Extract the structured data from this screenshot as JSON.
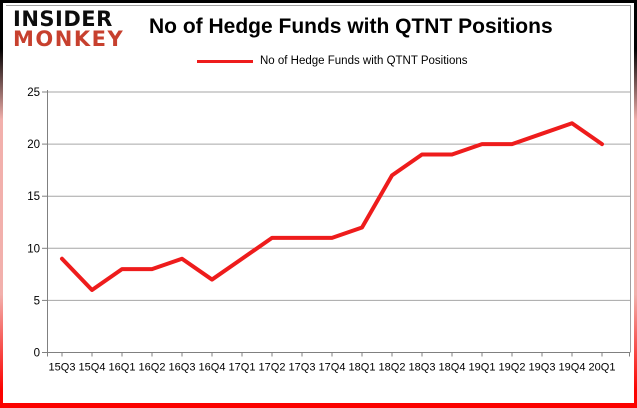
{
  "logo": {
    "line1": "INSIDER",
    "line2": "MONKEY"
  },
  "header": {
    "title": "No of Hedge Funds with QTNT Positions"
  },
  "legend": {
    "label": "No of Hedge Funds with QTNT Positions"
  },
  "colors": {
    "line": "#ee1c1c",
    "logo_red": "#c7402e",
    "grid": "#a6a6a6",
    "axis": "#808080",
    "chart_border": "#a0a0a0",
    "text": "#000000",
    "frame_top": "#000000",
    "frame_side": "#f2b0ac",
    "frame_bottom": "#fb0200"
  },
  "chart_data": {
    "type": "line",
    "title": "No of Hedge Funds with QTNT Positions",
    "xlabel": "",
    "ylabel": "",
    "categories": [
      "15Q3",
      "15Q4",
      "16Q1",
      "16Q2",
      "16Q3",
      "16Q4",
      "17Q1",
      "17Q2",
      "17Q3",
      "17Q4",
      "18Q1",
      "18Q2",
      "18Q3",
      "18Q4",
      "19Q1",
      "19Q2",
      "19Q3",
      "19Q4",
      "20Q1"
    ],
    "series": [
      {
        "name": "No of Hedge Funds with QTNT Positions",
        "values": [
          9,
          6,
          8,
          8,
          9,
          7,
          9,
          11,
          11,
          11,
          12,
          17,
          19,
          19,
          20,
          20,
          21,
          22,
          20
        ]
      }
    ],
    "ylim": [
      0,
      25
    ],
    "yticks": [
      0,
      5,
      10,
      15,
      20,
      25
    ],
    "grid": true,
    "legend_position": "top"
  }
}
